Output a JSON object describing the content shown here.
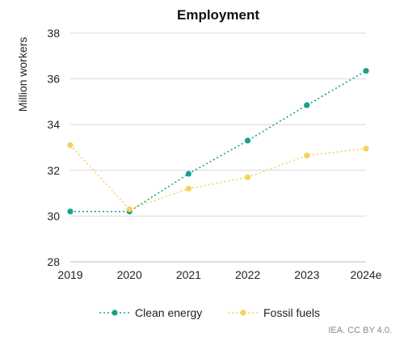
{
  "chart_data": {
    "type": "line",
    "title": "Employment",
    "ylabel": "Million workers",
    "xlabel": "",
    "categories": [
      "2019",
      "2020",
      "2021",
      "2022",
      "2023",
      "2024e"
    ],
    "ylim": [
      28,
      38
    ],
    "yticks": [
      28,
      30,
      32,
      34,
      36,
      38
    ],
    "grid": true,
    "legend_position": "bottom",
    "series": [
      {
        "name": "Clean energy",
        "color": "#1aa088",
        "values": [
          30.2,
          30.2,
          31.85,
          33.3,
          34.85,
          36.35
        ]
      },
      {
        "name": "Fossil fuels",
        "color": "#f5d25a",
        "values": [
          33.1,
          30.3,
          31.2,
          31.7,
          32.65,
          32.95
        ]
      }
    ]
  },
  "source_note": "IEA. CC BY 4.0."
}
